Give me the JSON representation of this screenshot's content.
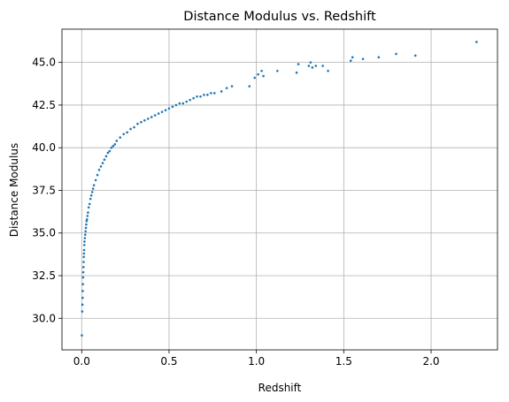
{
  "chart_data": {
    "type": "scatter",
    "title": "Distance Modulus vs. Redshift",
    "xlabel": "Redshift",
    "ylabel": "Distance Modulus",
    "xlim": [
      -0.113,
      2.38
    ],
    "ylim": [
      28.15,
      46.95
    ],
    "x_ticks": [
      0.0,
      0.5,
      1.0,
      1.5,
      2.0
    ],
    "x_tick_labels": [
      "0.0",
      "0.5",
      "1.0",
      "1.5",
      "2.0"
    ],
    "y_ticks": [
      30.0,
      32.5,
      35.0,
      37.5,
      40.0,
      42.5,
      45.0
    ],
    "y_tick_labels": [
      "30.0",
      "32.5",
      "35.0",
      "37.5",
      "40.0",
      "42.5",
      "45.0"
    ],
    "grid": true,
    "marker_color": "#1f77b4",
    "grid_color": "#b0b0b0",
    "series": [
      {
        "points": [
          [
            0.001,
            29.0
          ],
          [
            0.003,
            30.4
          ],
          [
            0.004,
            30.8
          ],
          [
            0.005,
            31.2
          ],
          [
            0.006,
            31.6
          ],
          [
            0.007,
            32.0
          ],
          [
            0.008,
            32.4
          ],
          [
            0.009,
            32.7
          ],
          [
            0.01,
            33.0
          ],
          [
            0.011,
            33.3
          ],
          [
            0.012,
            33.6
          ],
          [
            0.013,
            33.8
          ],
          [
            0.014,
            34.0
          ],
          [
            0.015,
            34.3
          ],
          [
            0.016,
            34.5
          ],
          [
            0.018,
            34.7
          ],
          [
            0.02,
            34.9
          ],
          [
            0.022,
            35.1
          ],
          [
            0.024,
            35.3
          ],
          [
            0.026,
            35.5
          ],
          [
            0.028,
            35.7
          ],
          [
            0.03,
            35.8
          ],
          [
            0.033,
            36.0
          ],
          [
            0.036,
            36.2
          ],
          [
            0.04,
            36.5
          ],
          [
            0.045,
            36.7
          ],
          [
            0.05,
            37.0
          ],
          [
            0.055,
            37.2
          ],
          [
            0.06,
            37.4
          ],
          [
            0.065,
            37.6
          ],
          [
            0.07,
            37.8
          ],
          [
            0.08,
            38.1
          ],
          [
            0.09,
            38.4
          ],
          [
            0.1,
            38.7
          ],
          [
            0.11,
            38.9
          ],
          [
            0.12,
            39.1
          ],
          [
            0.13,
            39.3
          ],
          [
            0.14,
            39.5
          ],
          [
            0.15,
            39.7
          ],
          [
            0.16,
            39.8
          ],
          [
            0.17,
            40.0
          ],
          [
            0.18,
            40.1
          ],
          [
            0.19,
            40.2
          ],
          [
            0.2,
            40.4
          ],
          [
            0.22,
            40.6
          ],
          [
            0.24,
            40.8
          ],
          [
            0.26,
            40.9
          ],
          [
            0.28,
            41.1
          ],
          [
            0.3,
            41.2
          ],
          [
            0.32,
            41.4
          ],
          [
            0.34,
            41.5
          ],
          [
            0.36,
            41.6
          ],
          [
            0.38,
            41.7
          ],
          [
            0.4,
            41.8
          ],
          [
            0.42,
            41.9
          ],
          [
            0.44,
            42.0
          ],
          [
            0.46,
            42.1
          ],
          [
            0.48,
            42.2
          ],
          [
            0.5,
            42.3
          ],
          [
            0.52,
            42.4
          ],
          [
            0.54,
            42.5
          ],
          [
            0.56,
            42.6
          ],
          [
            0.58,
            42.6
          ],
          [
            0.6,
            42.7
          ],
          [
            0.62,
            42.8
          ],
          [
            0.64,
            42.9
          ],
          [
            0.66,
            43.0
          ],
          [
            0.68,
            43.0
          ],
          [
            0.7,
            43.1
          ],
          [
            0.72,
            43.1
          ],
          [
            0.74,
            43.2
          ],
          [
            0.76,
            43.2
          ],
          [
            0.8,
            43.3
          ],
          [
            0.83,
            43.5
          ],
          [
            0.86,
            43.6
          ],
          [
            0.96,
            43.6
          ],
          [
            0.99,
            44.1
          ],
          [
            1.01,
            44.3
          ],
          [
            1.03,
            44.5
          ],
          [
            1.04,
            44.2
          ],
          [
            1.12,
            44.5
          ],
          [
            1.23,
            44.4
          ],
          [
            1.24,
            44.9
          ],
          [
            1.3,
            44.8
          ],
          [
            1.31,
            45.0
          ],
          [
            1.32,
            44.7
          ],
          [
            1.34,
            44.8
          ],
          [
            1.38,
            44.8
          ],
          [
            1.41,
            44.5
          ],
          [
            1.54,
            45.1
          ],
          [
            1.55,
            45.3
          ],
          [
            1.61,
            45.2
          ],
          [
            1.7,
            45.3
          ],
          [
            1.8,
            45.5
          ],
          [
            1.91,
            45.4
          ],
          [
            2.26,
            46.2
          ]
        ]
      }
    ]
  }
}
